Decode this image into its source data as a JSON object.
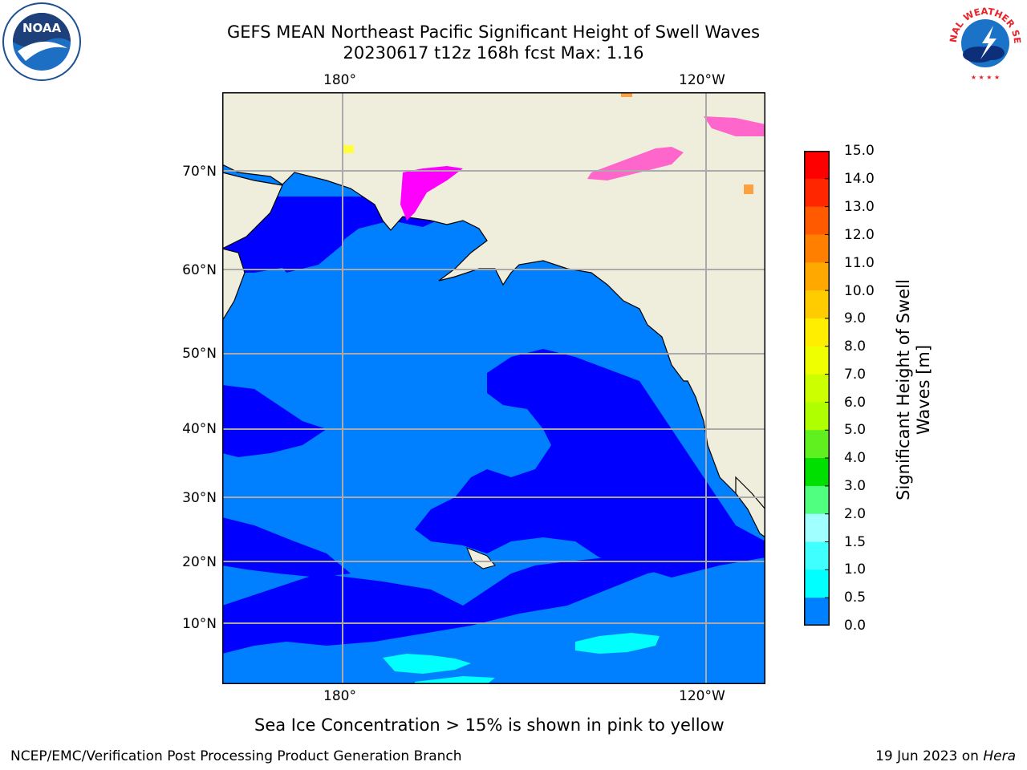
{
  "title": {
    "line1": "GEFS MEAN Northeast Pacific Significant Height of Swell Waves",
    "line2": "20230617 t12z 168h fcst   Max: 1.16"
  },
  "map": {
    "lon_labels_top": [
      "180°",
      "120°W"
    ],
    "lon_labels_bottom": [
      "180°",
      "120°W"
    ],
    "lat_labels": [
      "70°N",
      "60°N",
      "50°N",
      "40°N",
      "30°N",
      "20°N",
      "10°N"
    ],
    "colors": {
      "land": "#efeddc",
      "swell_0_05": "#0000ff",
      "swell_05_10": "#0080ff",
      "swell_10_15": "#00ffff",
      "swell_15_20": "#80ffff",
      "ice_pink": "#ff66cc",
      "ice_magenta": "#ff00ff",
      "ice_orange": "#ffa040",
      "ice_yellow": "#ffff40",
      "grid": "#aaaaaa"
    }
  },
  "colorbar": {
    "label_line1": "Significant Height of Swell",
    "label_line2": "Waves [m]",
    "ticks": [
      "15.0",
      "14.0",
      "13.0",
      "12.0",
      "11.0",
      "10.0",
      "9.0",
      "8.0",
      "7.0",
      "6.0",
      "5.0",
      "4.0",
      "3.0",
      "2.0",
      "1.5",
      "1.0",
      "0.5",
      "0.0"
    ],
    "colors_top_to_bottom": [
      "#ff0000",
      "#ff2600",
      "#ff5a00",
      "#ff8000",
      "#ffa800",
      "#ffcc00",
      "#ffee00",
      "#f0ff00",
      "#ccff00",
      "#b0ff00",
      "#60f020",
      "#00e000",
      "#50ff80",
      "#a0ffff",
      "#40ffff",
      "#00ffff",
      "#0080ff",
      "#0000ff"
    ]
  },
  "note": "Sea Ice Concentration > 15% is shown in pink to yellow",
  "footer": {
    "left": "NCEP/EMC/Verification Post Processing Product Generation Branch",
    "date": "19 Jun 2023 on ",
    "host": "Hera"
  },
  "logos": {
    "noaa_text": "NOAA",
    "noaa_ring": "NATIONAL OCEANIC AND ATMOSPHERIC ADMINISTRATION · U.S. DEPARTMENT OF COMMERCE",
    "nws_ring": "NATIONAL WEATHER SERVICE"
  }
}
